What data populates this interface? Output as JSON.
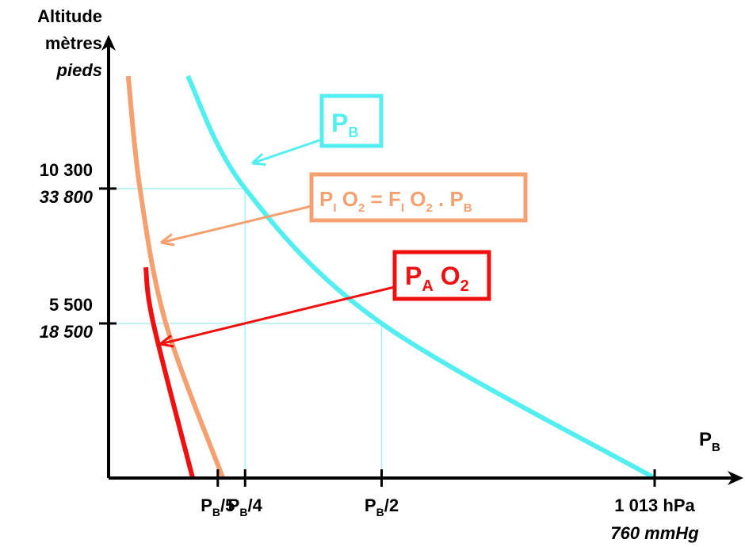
{
  "chart_data": {
    "type": "line",
    "y_axis": {
      "title": "Altitude",
      "unit_primary": "mètres",
      "unit_secondary": "pieds",
      "ticks": [
        {
          "meters": "10 300",
          "feet": "33 800",
          "value_m": 10300
        },
        {
          "meters": "5 500",
          "feet": "18 500",
          "value_m": 5500
        }
      ]
    },
    "x_axis": {
      "label_main": "P",
      "label_sub": "B",
      "ticks": [
        {
          "main": "P",
          "sub": "B",
          "suffix": "/5",
          "fraction": 0.2
        },
        {
          "main": "P",
          "sub": "B",
          "suffix": "/4",
          "fraction": 0.25
        },
        {
          "main": "P",
          "sub": "B",
          "suffix": "/2",
          "fraction": 0.5
        },
        {
          "main": "1 013 hPa",
          "sub": "",
          "suffix": "",
          "fraction": 1.0,
          "line2": "760 mmHg"
        }
      ]
    },
    "series": [
      {
        "name_main": "P",
        "name_sub": "B",
        "color": "#55eef0",
        "points": [
          [
            1.0,
            0
          ],
          [
            0.5,
            5500
          ],
          [
            0.25,
            10300
          ],
          [
            0.145,
            14300
          ]
        ]
      },
      {
        "color": "#f4a070",
        "points": [
          [
            0.2095,
            0
          ],
          [
            0.105,
            5500
          ],
          [
            0.0575,
            10300
          ],
          [
            0.036,
            14300
          ]
        ]
      },
      {
        "color": "#ee1111",
        "points": [
          [
            0.154,
            0
          ],
          [
            0.082,
            5500
          ],
          [
            0.068,
            7500
          ]
        ]
      }
    ],
    "annotations": {
      "pb_box": {
        "main": "P",
        "sub": "B",
        "color": "#55eef0"
      },
      "pio2_box": {
        "parts": [
          {
            "t": "P",
            "sub": "I"
          },
          {
            "t": " O",
            "sub": "2"
          },
          {
            "t": " = F",
            "sub": "I"
          },
          {
            "t": " O",
            "sub": "2"
          },
          {
            "t": " . P",
            "sub": "B"
          }
        ],
        "color": "#f4a070"
      },
      "pao2_box": {
        "parts": [
          {
            "t": "P",
            "sub": "A"
          },
          {
            "t": " O",
            "sub": "2"
          }
        ],
        "color": "#ee1111"
      }
    },
    "guide_color": "#a8f0f4",
    "axis_color": "#000000"
  }
}
